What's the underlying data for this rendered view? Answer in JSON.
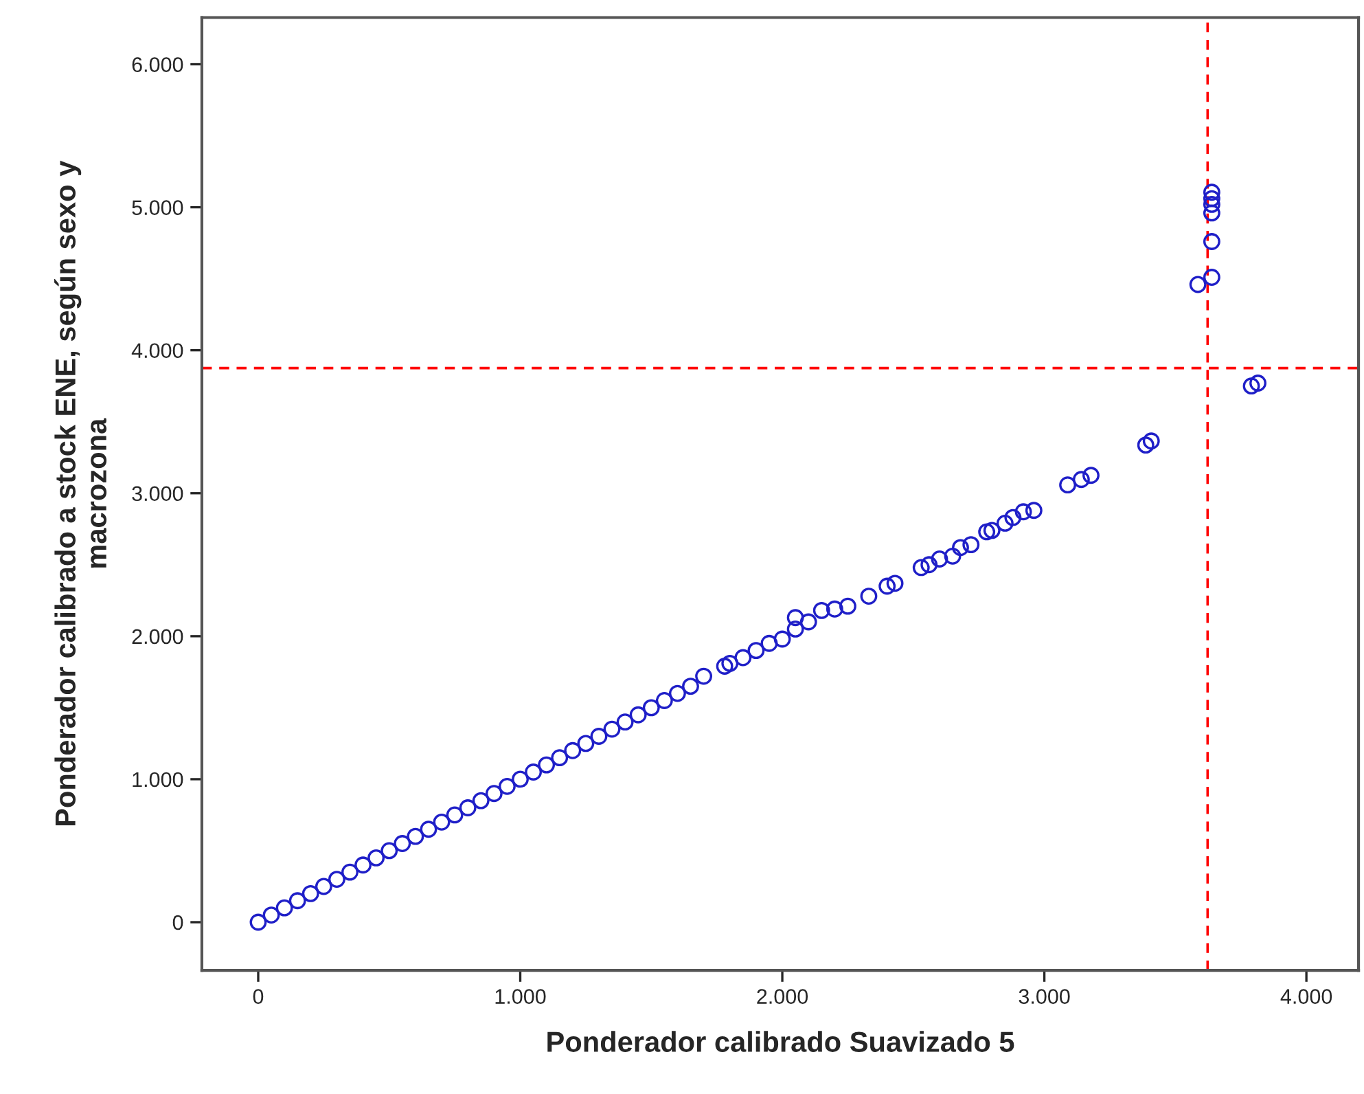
{
  "chart_data": {
    "type": "scatter",
    "xlabel": "Ponderador calibrado Suavizado 5",
    "ylabel": "Ponderador calibrado a stock ENE, según sexo y\nmacrozona",
    "x": [
      0,
      50,
      100,
      150,
      200,
      250,
      300,
      350,
      400,
      450,
      500,
      550,
      600,
      650,
      700,
      750,
      800,
      850,
      900,
      950,
      1000,
      1050,
      1100,
      1150,
      1200,
      1250,
      1300,
      1350,
      1400,
      1450,
      1500,
      1550,
      1600,
      1650,
      1700,
      1780,
      1800,
      1850,
      1900,
      1950,
      2000,
      2050,
      2050,
      2100,
      2150,
      2200,
      2250,
      2330,
      2400,
      2430,
      2530,
      2560,
      2600,
      2650,
      2680,
      2720,
      2780,
      2800,
      2850,
      2880,
      2920,
      2960,
      3089,
      3141,
      3178,
      3387,
      3408,
      3586,
      3639,
      3639,
      3639,
      3639,
      3639,
      3639,
      3790,
      3815
    ],
    "series": [
      {
        "color": "#1f1fc8",
        "values": [
          0,
          50,
          100,
          150,
          200,
          250,
          300,
          350,
          400,
          450,
          500,
          550,
          600,
          650,
          700,
          750,
          800,
          850,
          900,
          950,
          1000,
          1050,
          1100,
          1150,
          1200,
          1250,
          1300,
          1350,
          1400,
          1450,
          1500,
          1550,
          1600,
          1650,
          1720,
          1790,
          1810,
          1850,
          1900,
          1950,
          1980,
          2130,
          2050,
          2100,
          2180,
          2190,
          2210,
          2280,
          2350,
          2370,
          2480,
          2500,
          2540,
          2560,
          2620,
          2640,
          2730,
          2740,
          2790,
          2830,
          2870,
          2880,
          3058,
          3096,
          3125,
          3337,
          3365,
          4460,
          4510,
          4760,
          4960,
          5020,
          5060,
          5105,
          3750,
          3770
        ]
      }
    ],
    "xlim": [
      -215,
      4199
    ],
    "ylim": [
      -337,
      6327
    ],
    "xticks": [
      {
        "value": 0,
        "label": "0"
      },
      {
        "value": 1000,
        "label": "1.000"
      },
      {
        "value": 2000,
        "label": "2.000"
      },
      {
        "value": 3000,
        "label": "3.000"
      },
      {
        "value": 4000,
        "label": "4.000"
      }
    ],
    "yticks": [
      {
        "value": 0,
        "label": "0"
      },
      {
        "value": 1000,
        "label": "1.000"
      },
      {
        "value": 2000,
        "label": "2.000"
      },
      {
        "value": 3000,
        "label": "3.000"
      },
      {
        "value": 4000,
        "label": "4.000"
      },
      {
        "value": 5000,
        "label": "5.000"
      },
      {
        "value": 6000,
        "label": "6.000"
      }
    ],
    "ref_lines": [
      {
        "axis": "x",
        "value": 3623,
        "color": "#ff0000",
        "line_style": "dashed"
      },
      {
        "axis": "y",
        "value": 3875,
        "color": "#ff0000",
        "line_style": "dashed"
      }
    ],
    "marker": "circle",
    "grid": false,
    "legend": false
  }
}
